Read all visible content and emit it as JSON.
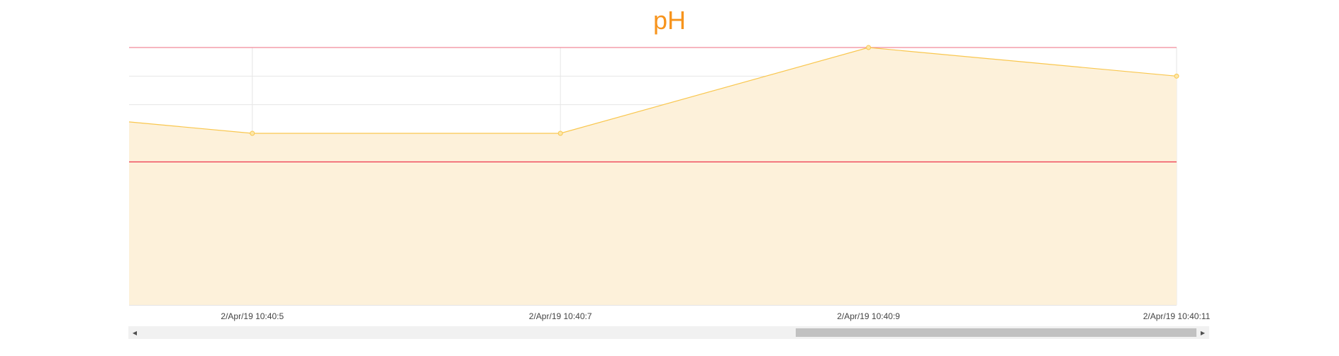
{
  "page": {
    "title": "pH",
    "title_color": "#f7941d"
  },
  "chart_data": {
    "type": "area",
    "title": "pH",
    "xlabel": "",
    "ylabel": "",
    "x_tick_labels": [
      "2/Apr/19 10:40:5",
      "2/Apr/19 10:40:7",
      "2/Apr/19 10:40:9",
      "2/Apr/19 10:40:11"
    ],
    "x": [
      4.2,
      5,
      7,
      9,
      11
    ],
    "xlim": [
      4.2,
      11
    ],
    "ylim": [
      0,
      9
    ],
    "series": [
      {
        "values": [
          6.4,
          6.0,
          6.0,
          9.0,
          8.0
        ],
        "color": "#f9c74f",
        "fill": "#fdf1da"
      }
    ],
    "threshold_lines": [
      {
        "value": 9.0,
        "color": "#f28b99"
      },
      {
        "value": 5.0,
        "color": "#ee4457"
      }
    ],
    "grid": true,
    "horizontal_scroll": {
      "thumb_start": 0.62,
      "thumb_end": 1.0
    }
  }
}
